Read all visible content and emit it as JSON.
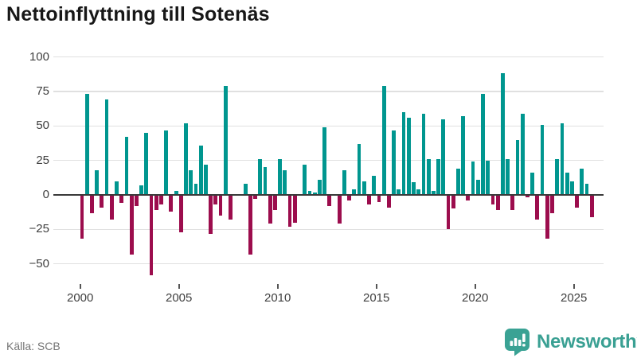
{
  "title": "Nettoinflyttning till Sotenäs",
  "source": {
    "label": "Källa: SCB"
  },
  "brand": {
    "name": "Newsworthy",
    "color": "#3aa093",
    "badge_icon": "bar-chart-pin-icon"
  },
  "colors": {
    "positive_bar": "#00968F",
    "negative_bar": "#9C0D4D",
    "zero_line": "#3a3a3a",
    "gridline": "#e0e0e0",
    "axis_text": "#404040",
    "title_text": "#171717",
    "source_text": "#757575",
    "background": "#ffffff"
  },
  "chart_data": {
    "type": "bar",
    "title": "Nettoinflyttning till Sotenäs",
    "x_frequency": "quarterly",
    "x_start": "2000 Q1",
    "x_end": "2025 Q4",
    "values": [
      -32,
      73,
      -13,
      18,
      -9,
      69,
      -18,
      10,
      -6,
      42,
      -43,
      -8,
      7,
      45,
      -58,
      -11,
      -7,
      47,
      -12,
      3,
      -27,
      52,
      18,
      8,
      36,
      22,
      -28,
      -7,
      -15,
      79,
      -18,
      0,
      0,
      8,
      -43,
      -3,
      26,
      20,
      -21,
      -11,
      26,
      18,
      -23,
      -20,
      0,
      22,
      3,
      2,
      11,
      49,
      -8,
      0,
      -21,
      18,
      -4,
      4,
      37,
      10,
      -7,
      14,
      -5,
      79,
      -9,
      47,
      4,
      60,
      56,
      9,
      4,
      59,
      26,
      3,
      26,
      55,
      -25,
      -10,
      19,
      57,
      -4,
      24,
      11,
      73,
      25,
      -7,
      -11,
      88,
      26,
      -11,
      40,
      59,
      -2,
      16,
      -18,
      51,
      -32,
      -13,
      26,
      52,
      16,
      10,
      -9,
      19,
      8,
      -16
    ],
    "xtick_labels": [
      "2000",
      "2005",
      "2010",
      "2015",
      "2020",
      "2025"
    ],
    "yticks": [
      100,
      75,
      50,
      25,
      0,
      -25,
      -50
    ],
    "ytick_labels": [
      "100",
      "75",
      "50",
      "25",
      "0",
      "−25",
      "−50"
    ],
    "ylim": [
      -62,
      107
    ],
    "grid": "horizontal",
    "legend": "none"
  }
}
